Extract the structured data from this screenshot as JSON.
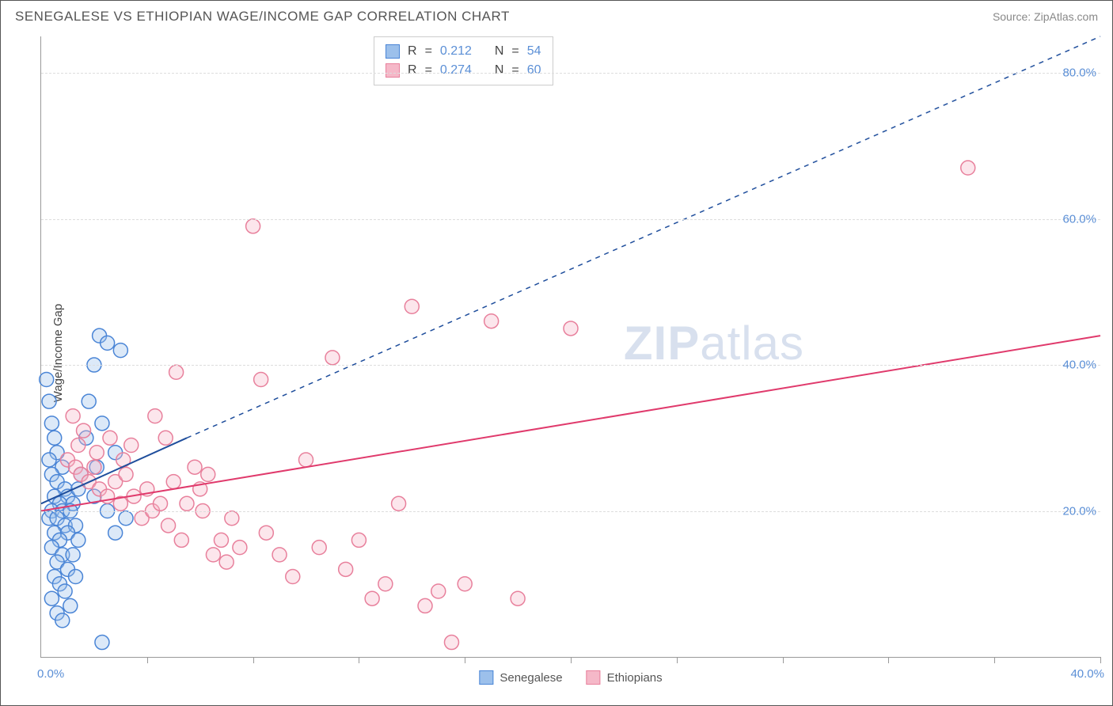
{
  "header": {
    "title": "SENEGALESE VS ETHIOPIAN WAGE/INCOME GAP CORRELATION CHART",
    "source_prefix": "Source: ",
    "source_name": "ZipAtlas.com"
  },
  "chart": {
    "type": "scatter",
    "y_axis_label": "Wage/Income Gap",
    "background_color": "#ffffff",
    "grid_color": "#dddddd",
    "axis_color": "#999999",
    "xlim": [
      0,
      40
    ],
    "ylim": [
      0,
      85
    ],
    "y_ticks": [
      20,
      40,
      60,
      80
    ],
    "y_tick_labels": [
      "20.0%",
      "40.0%",
      "60.0%",
      "80.0%"
    ],
    "x_ticks_minor": [
      4,
      8,
      12,
      16,
      20,
      24,
      28,
      32,
      36,
      40
    ],
    "x_tick_labels": {
      "min": "0.0%",
      "max": "40.0%"
    },
    "watermark": "ZIPatlas",
    "marker_radius": 9,
    "marker_fill_opacity": 0.35,
    "marker_stroke_width": 1.5,
    "trend_line_width": 2,
    "series": [
      {
        "name": "Senegalese",
        "color_stroke": "#4a85d6",
        "color_fill": "#9cc0eb",
        "trend_color": "#1f4e9c",
        "r_value": "0.212",
        "n_value": "54",
        "trend_solid": {
          "x1": 0,
          "y1": 21,
          "x2": 5.5,
          "y2": 30
        },
        "trend_dashed": {
          "x1": 5.5,
          "y1": 30,
          "x2": 40,
          "y2": 85
        },
        "points": [
          [
            0.2,
            38
          ],
          [
            0.3,
            35
          ],
          [
            0.4,
            32
          ],
          [
            0.5,
            30
          ],
          [
            0.6,
            28
          ],
          [
            0.3,
            27
          ],
          [
            0.8,
            26
          ],
          [
            0.4,
            25
          ],
          [
            0.6,
            24
          ],
          [
            0.9,
            23
          ],
          [
            0.5,
            22
          ],
          [
            1.0,
            22
          ],
          [
            0.7,
            21
          ],
          [
            1.2,
            21
          ],
          [
            0.4,
            20
          ],
          [
            0.8,
            20
          ],
          [
            1.1,
            20
          ],
          [
            0.3,
            19
          ],
          [
            0.6,
            19
          ],
          [
            0.9,
            18
          ],
          [
            1.3,
            18
          ],
          [
            0.5,
            17
          ],
          [
            1.0,
            17
          ],
          [
            0.7,
            16
          ],
          [
            1.4,
            16
          ],
          [
            0.4,
            15
          ],
          [
            0.8,
            14
          ],
          [
            1.2,
            14
          ],
          [
            0.6,
            13
          ],
          [
            1.0,
            12
          ],
          [
            0.5,
            11
          ],
          [
            1.3,
            11
          ],
          [
            0.7,
            10
          ],
          [
            0.9,
            9
          ],
          [
            0.4,
            8
          ],
          [
            1.1,
            7
          ],
          [
            0.6,
            6
          ],
          [
            0.8,
            5
          ],
          [
            2.2,
            44
          ],
          [
            2.5,
            43
          ],
          [
            3.0,
            42
          ],
          [
            2.0,
            40
          ],
          [
            1.8,
            35
          ],
          [
            2.3,
            32
          ],
          [
            2.8,
            28
          ],
          [
            1.5,
            25
          ],
          [
            2.0,
            22
          ],
          [
            2.5,
            20
          ],
          [
            3.2,
            19
          ],
          [
            2.8,
            17
          ],
          [
            1.7,
            30
          ],
          [
            2.1,
            26
          ],
          [
            1.4,
            23
          ],
          [
            2.3,
            2
          ]
        ]
      },
      {
        "name": "Ethiopians",
        "color_stroke": "#e8809c",
        "color_fill": "#f5b8c8",
        "trend_color": "#e03a6c",
        "r_value": "0.274",
        "n_value": "60",
        "trend_solid": {
          "x1": 0,
          "y1": 20,
          "x2": 40,
          "y2": 44
        },
        "trend_dashed": null,
        "points": [
          [
            1.0,
            27
          ],
          [
            1.3,
            26
          ],
          [
            1.5,
            25
          ],
          [
            1.8,
            24
          ],
          [
            2.0,
            26
          ],
          [
            2.2,
            23
          ],
          [
            2.5,
            22
          ],
          [
            2.8,
            24
          ],
          [
            3.0,
            21
          ],
          [
            3.2,
            25
          ],
          [
            3.5,
            22
          ],
          [
            3.8,
            19
          ],
          [
            4.0,
            23
          ],
          [
            4.2,
            20
          ],
          [
            4.5,
            21
          ],
          [
            4.8,
            18
          ],
          [
            5.0,
            24
          ],
          [
            5.3,
            16
          ],
          [
            5.5,
            21
          ],
          [
            5.8,
            26
          ],
          [
            6.0,
            23
          ],
          [
            6.3,
            25
          ],
          [
            6.5,
            14
          ],
          [
            6.8,
            16
          ],
          [
            7.0,
            13
          ],
          [
            7.5,
            15
          ],
          [
            8.0,
            59
          ],
          [
            8.5,
            17
          ],
          [
            9.0,
            14
          ],
          [
            9.5,
            11
          ],
          [
            10.0,
            27
          ],
          [
            10.5,
            15
          ],
          [
            11.0,
            41
          ],
          [
            11.5,
            12
          ],
          [
            12.0,
            16
          ],
          [
            12.5,
            8
          ],
          [
            13.0,
            10
          ],
          [
            13.5,
            21
          ],
          [
            14.0,
            48
          ],
          [
            14.5,
            7
          ],
          [
            15.0,
            9
          ],
          [
            15.5,
            2
          ],
          [
            16.0,
            10
          ],
          [
            17.0,
            46
          ],
          [
            18.0,
            8
          ],
          [
            20.0,
            45
          ],
          [
            35.0,
            67
          ],
          [
            1.2,
            33
          ],
          [
            1.6,
            31
          ],
          [
            1.4,
            29
          ],
          [
            2.1,
            28
          ],
          [
            2.6,
            30
          ],
          [
            3.1,
            27
          ],
          [
            3.4,
            29
          ],
          [
            4.3,
            33
          ],
          [
            4.7,
            30
          ],
          [
            5.1,
            39
          ],
          [
            6.1,
            20
          ],
          [
            7.2,
            19
          ],
          [
            8.3,
            38
          ]
        ]
      }
    ],
    "legend_box": {
      "r_label": "R",
      "n_label": "N",
      "eq": "="
    }
  },
  "colors": {
    "tick_label": "#5b8fd6",
    "text": "#555555",
    "source_text": "#888888"
  }
}
